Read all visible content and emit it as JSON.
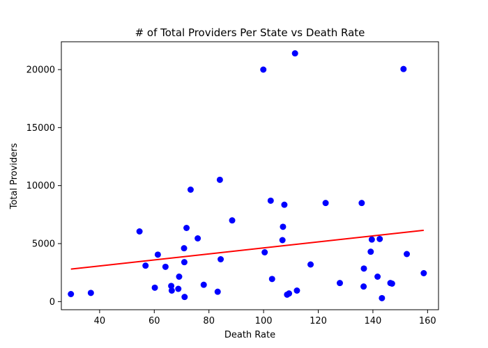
{
  "chart_data": {
    "type": "scatter",
    "title": "# of Total Providers Per State vs Death Rate",
    "xlabel": "Death Rate",
    "ylabel": "Total Providers",
    "xlim": [
      26,
      164
    ],
    "ylim": [
      -700,
      22400
    ],
    "x_ticks": [
      40,
      60,
      80,
      100,
      120,
      140,
      160
    ],
    "y_ticks": [
      0,
      5000,
      10000,
      15000,
      20000
    ],
    "grid": false,
    "legend": "none",
    "point_color": "#0000ff",
    "line_color": "#ff0000",
    "series": [
      {
        "type": "scatter",
        "points": [
          [
            29.5,
            650
          ],
          [
            36.8,
            750
          ],
          [
            54.6,
            6050
          ],
          [
            56.8,
            3100
          ],
          [
            60.2,
            1200
          ],
          [
            61.3,
            4050
          ],
          [
            64.1,
            3000
          ],
          [
            66.2,
            1350
          ],
          [
            66.4,
            950
          ],
          [
            68.8,
            1100
          ],
          [
            69.1,
            2150
          ],
          [
            70.9,
            4600
          ],
          [
            71.0,
            3400
          ],
          [
            71.1,
            400
          ],
          [
            71.8,
            6350
          ],
          [
            73.3,
            9650
          ],
          [
            75.9,
            5450
          ],
          [
            78.1,
            1450
          ],
          [
            83.2,
            850
          ],
          [
            84.0,
            10500
          ],
          [
            84.3,
            3650
          ],
          [
            88.5,
            7000
          ],
          [
            99.9,
            20000
          ],
          [
            100.4,
            4250
          ],
          [
            102.6,
            8700
          ],
          [
            103.1,
            1950
          ],
          [
            106.9,
            5300
          ],
          [
            107.1,
            6450
          ],
          [
            107.6,
            8350
          ],
          [
            108.6,
            600
          ],
          [
            109.3,
            700
          ],
          [
            111.5,
            21400
          ],
          [
            112.2,
            950
          ],
          [
            117.2,
            3200
          ],
          [
            122.7,
            8500
          ],
          [
            127.9,
            1600
          ],
          [
            135.9,
            8500
          ],
          [
            136.6,
            1300
          ],
          [
            136.7,
            2850
          ],
          [
            139.2,
            4300
          ],
          [
            139.6,
            5350
          ],
          [
            141.7,
            2150
          ],
          [
            142.5,
            5400
          ],
          [
            143.3,
            300
          ],
          [
            146.4,
            1600
          ],
          [
            147.0,
            1550
          ],
          [
            151.2,
            20050
          ],
          [
            152.4,
            4100
          ],
          [
            158.6,
            2450
          ]
        ]
      },
      {
        "type": "line",
        "name": "",
        "points": [
          [
            29.5,
            2800
          ],
          [
            158.6,
            6150
          ]
        ]
      }
    ]
  }
}
